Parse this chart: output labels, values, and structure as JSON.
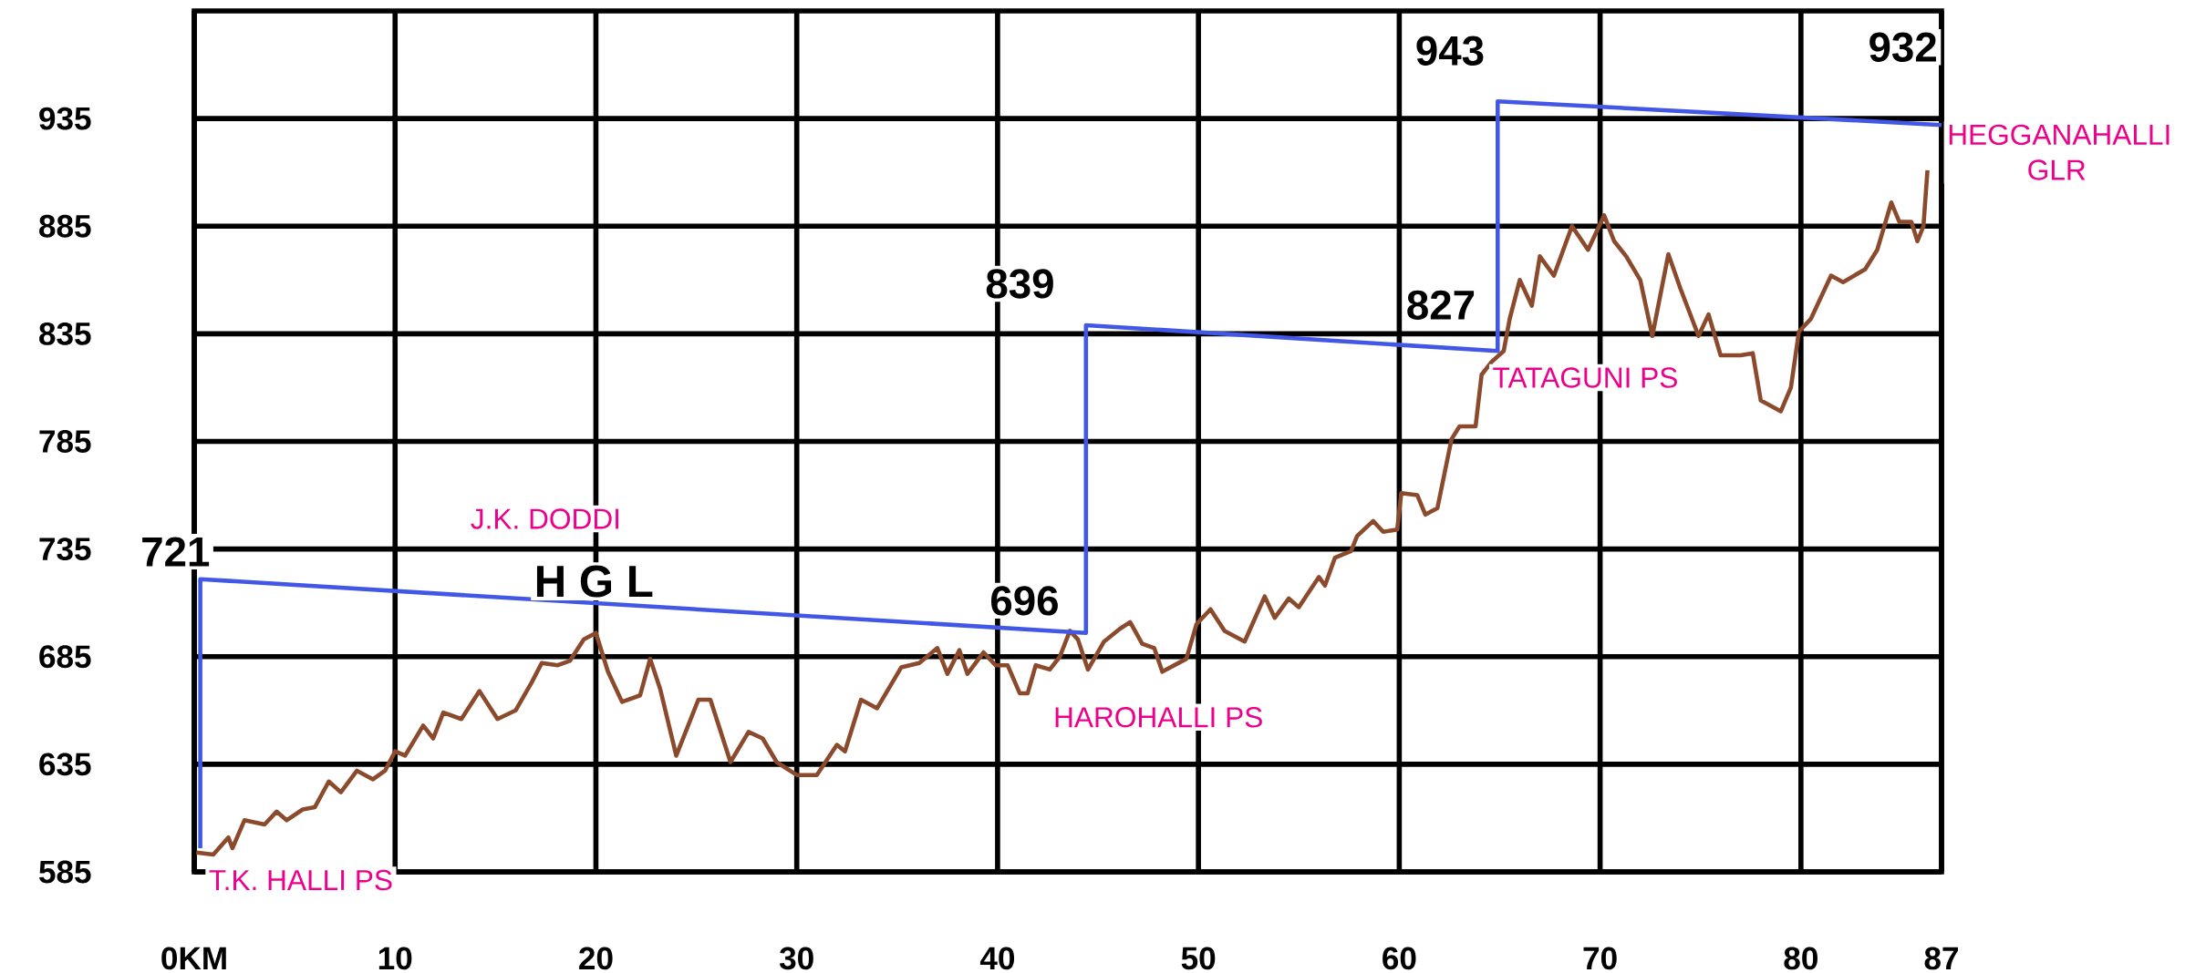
{
  "chart_data": {
    "type": "line",
    "xlim": [
      0,
      87
    ],
    "ylim": [
      585,
      985
    ],
    "xticks": [
      {
        "value": 0,
        "label": "0KM"
      },
      10,
      20,
      30,
      40,
      50,
      60,
      70,
      80,
      87
    ],
    "yticks": [
      585,
      635,
      685,
      735,
      785,
      835,
      885,
      935
    ],
    "grid": true,
    "series": [
      {
        "color": "#8b4a2b",
        "x": [
          0.1,
          0.95,
          1.7,
          1.9,
          2.5,
          3.5,
          4.1,
          4.6,
          5.4,
          6.0,
          6.7,
          7.3,
          8.1,
          8.9,
          9.5,
          10.0,
          10.5,
          11.4,
          11.9,
          12.4,
          13.3,
          14.2,
          15.1,
          16.0,
          16.8,
          17.3,
          18.1,
          18.7,
          19.4,
          20.0,
          20.6,
          21.3,
          22.2,
          22.7,
          23.2,
          24.0,
          25.1,
          25.7,
          26.7,
          27.6,
          28.3,
          29.0,
          30.0,
          31.0,
          32.0,
          32.4,
          33.2,
          34.0,
          35.2,
          36.1,
          37.0,
          37.5,
          38.1,
          38.5,
          39.3,
          39.9,
          40.5,
          41.1,
          41.5,
          41.9,
          42.6,
          43.1,
          43.6,
          44.0,
          44.5,
          45.3,
          46.1,
          46.6,
          47.2,
          47.8,
          48.2,
          49.4,
          49.9,
          50.6,
          51.3,
          52.3,
          53.3,
          53.8,
          54.5,
          55.0,
          56.0,
          56.3,
          56.8,
          57.6,
          57.9,
          58.7,
          59.2,
          59.9,
          60.1,
          60.9,
          61.3,
          61.9,
          62.6,
          63.0,
          63.8,
          64.1,
          64.6,
          65.2,
          65.5,
          66.0,
          66.6,
          67.0,
          67.7,
          68.6,
          69.4,
          70.2,
          70.7,
          71.3,
          72.0,
          72.6,
          73.4,
          74.0,
          74.9,
          75.4,
          76.0,
          77.0,
          77.6,
          78.0,
          79.0,
          79.5,
          79.9,
          80.5,
          81.5,
          82.1,
          83.2,
          83.8,
          84.5,
          84.9,
          85.5,
          85.8,
          86.1,
          86.3
        ],
        "values": [
          594,
          593,
          601,
          596,
          609,
          607,
          613,
          609,
          614,
          615,
          627,
          622,
          632,
          628,
          632,
          641,
          639,
          653,
          647,
          659,
          656,
          669,
          656,
          660,
          673,
          682,
          681,
          683,
          693,
          696,
          678,
          664,
          667,
          684,
          670,
          639,
          665,
          665,
          636,
          650,
          647,
          636,
          630,
          630,
          644,
          641,
          665,
          661,
          680,
          682,
          689,
          677,
          688,
          677,
          687,
          681,
          681,
          668,
          668,
          681,
          679,
          685,
          697,
          693,
          679,
          692,
          698,
          701,
          691,
          689,
          678,
          684,
          700,
          707,
          697,
          692,
          713,
          703,
          712,
          708,
          722,
          718,
          731,
          734,
          741,
          748,
          743,
          744,
          761,
          760,
          751,
          754,
          786,
          792,
          792,
          816,
          822,
          827,
          842,
          860,
          848,
          871,
          862,
          885,
          874,
          890,
          878,
          871,
          860,
          834,
          872,
          856,
          834,
          844,
          825,
          825,
          826,
          804,
          799,
          810,
          836,
          842,
          862,
          859,
          865,
          874,
          896,
          887,
          887,
          878,
          885,
          911
        ]
      },
      {
        "name": "H G L",
        "color": "#4257e6",
        "x": [
          0.3,
          0.3,
          44.4,
          44.4,
          64.9,
          64.9,
          87
        ],
        "values": [
          596,
          721,
          696,
          839,
          827,
          943,
          932
        ]
      }
    ],
    "annotations": [
      {
        "text": "721",
        "x": 0.3,
        "y": 721
      },
      {
        "text": "696",
        "x": 44.4,
        "y": 696
      },
      {
        "text": "839",
        "x": 44.4,
        "y": 839
      },
      {
        "text": "827",
        "x": 64.9,
        "y": 827
      },
      {
        "text": "943",
        "x": 64.9,
        "y": 943
      },
      {
        "text": "932",
        "x": 87,
        "y": 932
      },
      {
        "text": "T.K. HALLI PS",
        "x": 0.3,
        "y": 596
      },
      {
        "text": "HAROHALLI PS",
        "x": 44.4,
        "y": 693
      },
      {
        "text": "TATAGUNI PS",
        "x": 64.9,
        "y": 822
      },
      {
        "text": "HEGGANAHALLI GLR",
        "x": 87,
        "y": 932
      },
      "J.K. DODDI"
    ]
  }
}
